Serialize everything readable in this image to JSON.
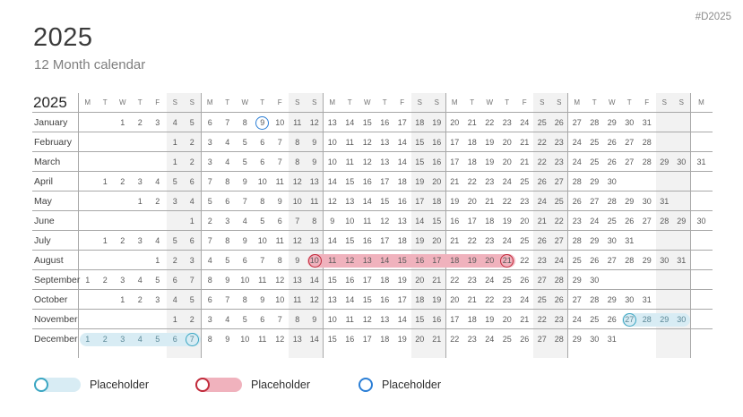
{
  "page": {
    "hashtag": "#D2025",
    "title": "2025",
    "subtitle": "12 Month calendar"
  },
  "calendar": {
    "year_label": "2025",
    "day_headers": [
      "M",
      "T",
      "W",
      "T",
      "F",
      "S",
      "S",
      "M",
      "T",
      "W",
      "T",
      "F",
      "S",
      "S",
      "M",
      "T",
      "W",
      "T",
      "F",
      "S",
      "S",
      "M",
      "T",
      "W",
      "T",
      "F",
      "S",
      "S",
      "M",
      "T",
      "W",
      "T",
      "F",
      "S",
      "S",
      "M"
    ],
    "months": [
      {
        "name": "January",
        "cells": [
          "",
          "",
          "1",
          "2",
          "3",
          "4",
          "5",
          "6",
          "7",
          "8",
          "9",
          "10",
          "11",
          "12",
          "13",
          "14",
          "15",
          "16",
          "17",
          "18",
          "19",
          "20",
          "21",
          "22",
          "23",
          "24",
          "25",
          "26",
          "27",
          "28",
          "29",
          "30",
          "31",
          "",
          "",
          ""
        ]
      },
      {
        "name": "February",
        "cells": [
          "",
          "",
          "",
          "",
          "",
          "1",
          "2",
          "3",
          "4",
          "5",
          "6",
          "7",
          "8",
          "9",
          "10",
          "11",
          "12",
          "13",
          "14",
          "15",
          "16",
          "17",
          "18",
          "19",
          "20",
          "21",
          "22",
          "23",
          "24",
          "25",
          "26",
          "27",
          "28",
          "",
          "",
          ""
        ]
      },
      {
        "name": "March",
        "cells": [
          "",
          "",
          "",
          "",
          "",
          "1",
          "2",
          "3",
          "4",
          "5",
          "6",
          "7",
          "8",
          "9",
          "10",
          "11",
          "12",
          "13",
          "14",
          "15",
          "16",
          "17",
          "18",
          "19",
          "20",
          "21",
          "22",
          "23",
          "24",
          "25",
          "26",
          "27",
          "28",
          "29",
          "30",
          "31"
        ]
      },
      {
        "name": "April",
        "cells": [
          "",
          "1",
          "2",
          "3",
          "4",
          "5",
          "6",
          "7",
          "8",
          "9",
          "10",
          "11",
          "12",
          "13",
          "14",
          "15",
          "16",
          "17",
          "18",
          "19",
          "20",
          "21",
          "22",
          "23",
          "24",
          "25",
          "26",
          "27",
          "28",
          "29",
          "30",
          "",
          "",
          "",
          "",
          ""
        ]
      },
      {
        "name": "May",
        "cells": [
          "",
          "",
          "",
          "1",
          "2",
          "3",
          "4",
          "5",
          "6",
          "7",
          "8",
          "9",
          "10",
          "11",
          "12",
          "13",
          "14",
          "15",
          "16",
          "17",
          "18",
          "19",
          "20",
          "21",
          "22",
          "23",
          "24",
          "25",
          "26",
          "27",
          "28",
          "29",
          "30",
          "31",
          "",
          ""
        ]
      },
      {
        "name": "June",
        "cells": [
          "",
          "",
          "",
          "",
          "",
          "",
          "1",
          "2",
          "3",
          "4",
          "5",
          "6",
          "7",
          "8",
          "9",
          "10",
          "11",
          "12",
          "13",
          "14",
          "15",
          "16",
          "17",
          "18",
          "19",
          "20",
          "21",
          "22",
          "23",
          "24",
          "25",
          "26",
          "27",
          "28",
          "29",
          "30"
        ]
      },
      {
        "name": "July",
        "cells": [
          "",
          "1",
          "2",
          "3",
          "4",
          "5",
          "6",
          "7",
          "8",
          "9",
          "10",
          "11",
          "12",
          "13",
          "14",
          "15",
          "16",
          "17",
          "18",
          "19",
          "20",
          "21",
          "22",
          "23",
          "24",
          "25",
          "26",
          "27",
          "28",
          "29",
          "30",
          "31",
          "",
          "",
          "",
          ""
        ]
      },
      {
        "name": "August",
        "cells": [
          "",
          "",
          "",
          "",
          "1",
          "2",
          "3",
          "4",
          "5",
          "6",
          "7",
          "8",
          "9",
          "10",
          "11",
          "12",
          "13",
          "14",
          "15",
          "16",
          "17",
          "18",
          "19",
          "20",
          "21",
          "22",
          "23",
          "24",
          "25",
          "26",
          "27",
          "28",
          "29",
          "30",
          "31",
          ""
        ]
      },
      {
        "name": "September",
        "cells": [
          "1",
          "2",
          "3",
          "4",
          "5",
          "6",
          "7",
          "8",
          "9",
          "10",
          "11",
          "12",
          "13",
          "14",
          "15",
          "16",
          "17",
          "18",
          "19",
          "20",
          "21",
          "22",
          "23",
          "24",
          "25",
          "26",
          "27",
          "28",
          "29",
          "30",
          "",
          "",
          "",
          "",
          "",
          ""
        ]
      },
      {
        "name": "October",
        "cells": [
          "",
          "",
          "1",
          "2",
          "3",
          "4",
          "5",
          "6",
          "7",
          "8",
          "9",
          "10",
          "11",
          "12",
          "13",
          "14",
          "15",
          "16",
          "17",
          "18",
          "19",
          "20",
          "21",
          "22",
          "23",
          "24",
          "25",
          "26",
          "27",
          "28",
          "29",
          "30",
          "31",
          "",
          "",
          ""
        ]
      },
      {
        "name": "November",
        "cells": [
          "",
          "",
          "",
          "",
          "",
          "1",
          "2",
          "3",
          "4",
          "5",
          "6",
          "7",
          "8",
          "9",
          "10",
          "11",
          "12",
          "13",
          "14",
          "15",
          "16",
          "17",
          "18",
          "19",
          "20",
          "21",
          "22",
          "23",
          "24",
          "25",
          "26",
          "27",
          "28",
          "29",
          "30",
          ""
        ]
      },
      {
        "name": "December",
        "cells": [
          "1",
          "2",
          "3",
          "4",
          "5",
          "6",
          "7",
          "8",
          "9",
          "10",
          "11",
          "12",
          "13",
          "14",
          "15",
          "16",
          "17",
          "18",
          "19",
          "20",
          "21",
          "22",
          "23",
          "24",
          "25",
          "26",
          "27",
          "28",
          "29",
          "30",
          "31",
          "",
          "",
          "",
          "",
          ""
        ]
      }
    ],
    "highlights": [
      {
        "month": "January",
        "type": "circle",
        "style": "blue",
        "day": 9
      },
      {
        "month": "August",
        "type": "band",
        "style": "red",
        "start": 10,
        "end": 21
      },
      {
        "month": "August",
        "type": "circle",
        "style": "red",
        "day": 10
      },
      {
        "month": "August",
        "type": "circle",
        "style": "red",
        "day": 21
      },
      {
        "month": "November",
        "type": "band",
        "style": "teal",
        "start": 27,
        "end": 30
      },
      {
        "month": "November",
        "type": "circle",
        "style": "teal",
        "day": 27
      },
      {
        "month": "December",
        "type": "band",
        "style": "teal",
        "start": 1,
        "end": 7
      },
      {
        "month": "December",
        "type": "circle",
        "style": "teal",
        "day": 7
      }
    ]
  },
  "legend": {
    "items": [
      {
        "swatch": "teal-band-with-ring",
        "label": "Placeholder"
      },
      {
        "swatch": "red-band-with-ring",
        "label": "Placeholder"
      },
      {
        "swatch": "blue-ring",
        "label": "Placeholder"
      }
    ]
  },
  "colors": {
    "teal_ring": "#3ba6c2",
    "teal_band": "#d8ecf4",
    "red_ring": "#c12b3b",
    "red_band": "#f0b2bd",
    "blue_ring": "#2c7fd6",
    "weekend_bg": "#f2f2f2",
    "grid_line": "#a8a8a8"
  }
}
